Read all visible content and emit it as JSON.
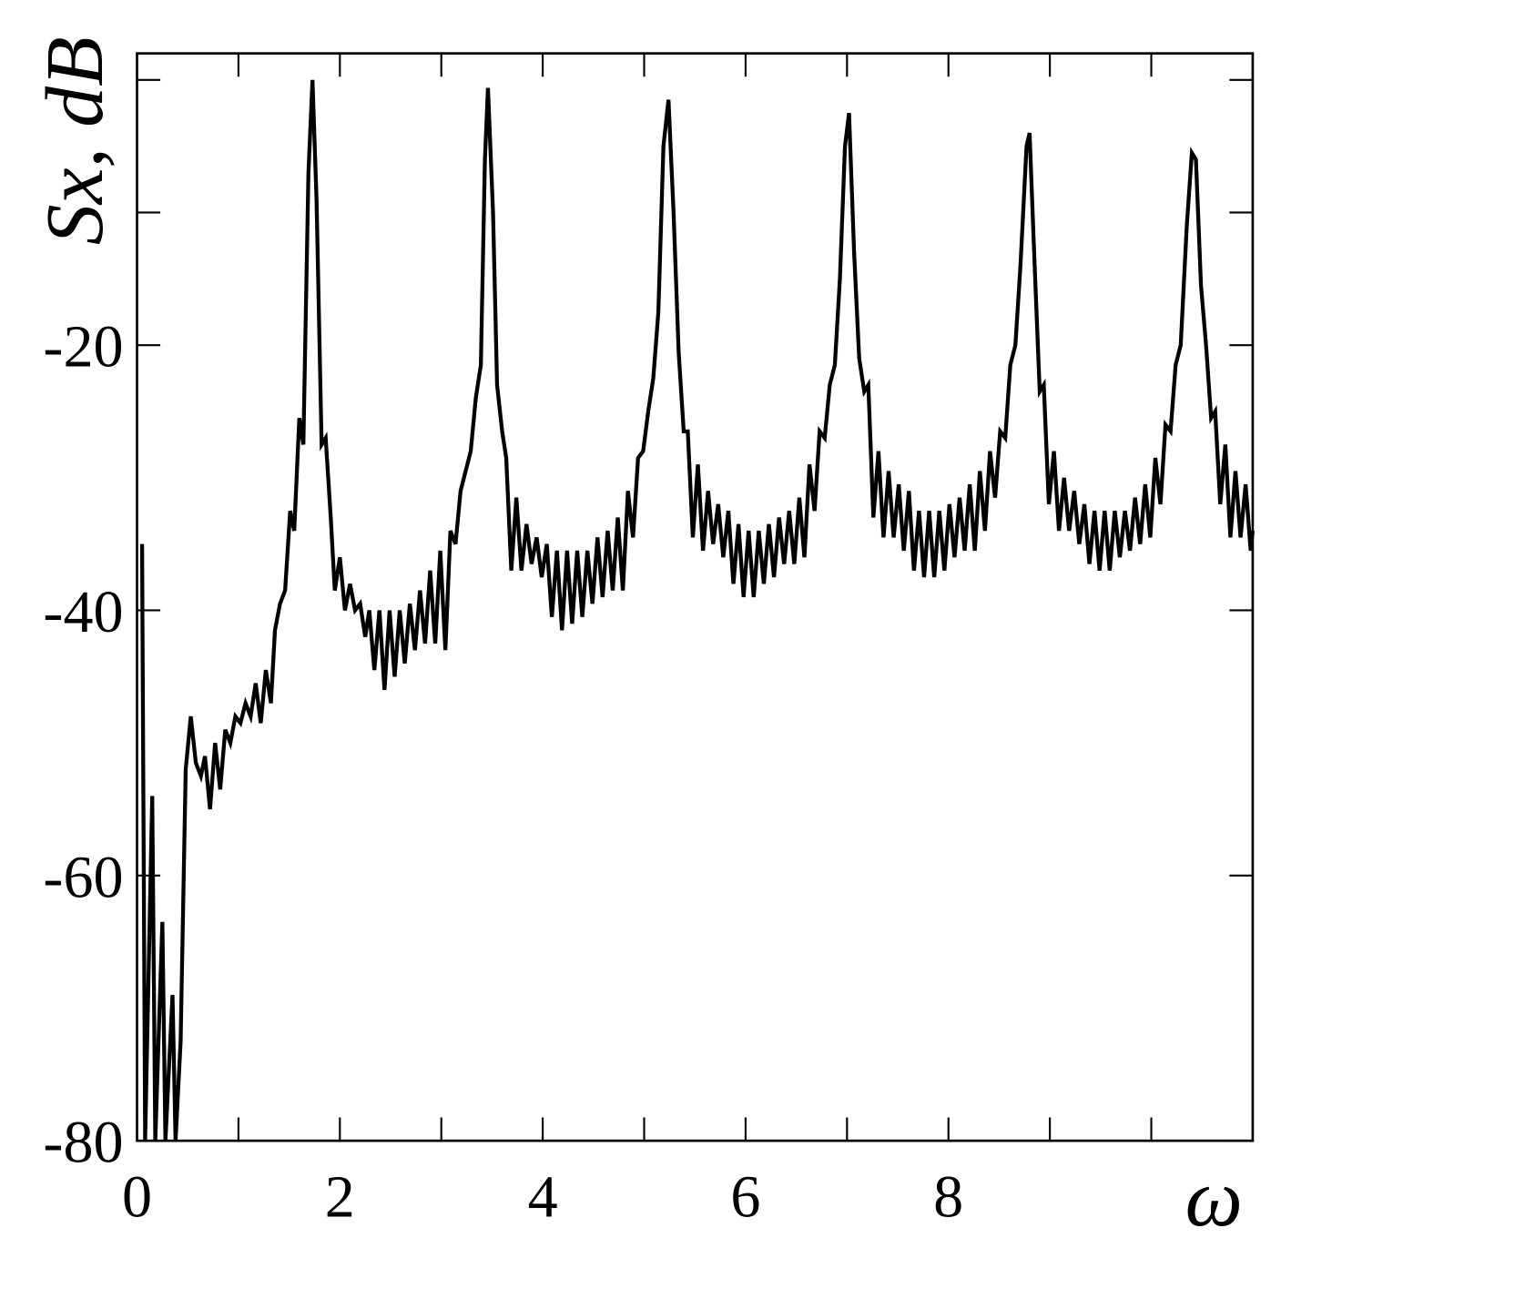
{
  "chart_data": {
    "type": "line",
    "x_label": "ω",
    "y_label": "Sx, dB",
    "color": "#000000",
    "xlim": [
      0,
      11
    ],
    "ylim": [
      -80,
      2
    ],
    "xticks": [
      0,
      2,
      4,
      6,
      8
    ],
    "xminorticks": [
      1,
      3,
      5,
      7,
      9,
      10
    ],
    "yticks": [
      -80,
      -60,
      -40,
      -20
    ],
    "yminorticks": [
      -10,
      0
    ],
    "x": [
      0.05,
      0.08,
      0.15,
      0.18,
      0.25,
      0.28,
      0.35,
      0.38,
      0.43,
      0.48,
      0.53,
      0.58,
      0.63,
      0.67,
      0.72,
      0.77,
      0.82,
      0.87,
      0.92,
      0.97,
      1.02,
      1.07,
      1.12,
      1.17,
      1.22,
      1.27,
      1.32,
      1.36,
      1.41,
      1.46,
      1.51,
      1.55,
      1.6,
      1.64,
      1.69,
      1.73,
      1.77,
      1.82,
      1.86,
      1.91,
      1.95,
      2.0,
      2.05,
      2.1,
      2.15,
      2.2,
      2.25,
      2.29,
      2.34,
      2.39,
      2.44,
      2.49,
      2.54,
      2.59,
      2.64,
      2.69,
      2.74,
      2.79,
      2.84,
      2.89,
      2.94,
      2.99,
      3.04,
      3.09,
      3.14,
      3.19,
      3.24,
      3.29,
      3.34,
      3.39,
      3.43,
      3.46,
      3.51,
      3.55,
      3.6,
      3.64,
      3.69,
      3.74,
      3.79,
      3.84,
      3.89,
      3.94,
      3.99,
      4.04,
      4.09,
      4.14,
      4.19,
      4.24,
      4.29,
      4.34,
      4.39,
      4.44,
      4.49,
      4.54,
      4.59,
      4.64,
      4.69,
      4.74,
      4.79,
      4.84,
      4.89,
      4.94,
      4.99,
      5.04,
      5.09,
      5.14,
      5.19,
      5.24,
      5.29,
      5.34,
      5.39,
      5.43,
      5.48,
      5.53,
      5.58,
      5.63,
      5.68,
      5.73,
      5.78,
      5.83,
      5.88,
      5.93,
      5.98,
      6.03,
      6.08,
      6.13,
      6.18,
      6.23,
      6.28,
      6.33,
      6.38,
      6.43,
      6.48,
      6.53,
      6.58,
      6.63,
      6.68,
      6.73,
      6.78,
      6.83,
      6.88,
      6.93,
      6.98,
      7.02,
      7.07,
      7.12,
      7.17,
      7.21,
      7.26,
      7.31,
      7.36,
      7.41,
      7.46,
      7.51,
      7.56,
      7.61,
      7.66,
      7.71,
      7.76,
      7.81,
      7.86,
      7.91,
      7.96,
      8.01,
      8.06,
      8.11,
      8.16,
      8.21,
      8.26,
      8.31,
      8.36,
      8.41,
      8.46,
      8.51,
      8.56,
      8.61,
      8.66,
      8.71,
      8.77,
      8.8,
      8.85,
      8.9,
      8.94,
      8.99,
      9.04,
      9.09,
      9.14,
      9.19,
      9.24,
      9.29,
      9.34,
      9.39,
      9.44,
      9.49,
      9.54,
      9.59,
      9.64,
      9.69,
      9.74,
      9.79,
      9.84,
      9.89,
      9.94,
      9.99,
      10.04,
      10.09,
      10.14,
      10.19,
      10.24,
      10.29,
      10.35,
      10.4,
      10.44,
      10.49,
      10.54,
      10.59,
      10.63,
      10.68,
      10.73,
      10.78,
      10.83,
      10.88,
      10.93,
      10.98,
      11.0
    ],
    "values": [
      -35,
      -80,
      -54,
      -80,
      -63.5,
      -80,
      -69,
      -80,
      -72.5,
      -52,
      -48,
      -51.5,
      -52.5,
      -51,
      -55,
      -50,
      -53.5,
      -49,
      -50,
      -48,
      -48.5,
      -47,
      -48,
      -45.5,
      -48.5,
      -44.5,
      -47,
      -41.5,
      -39.5,
      -38.5,
      -32.5,
      -34,
      -25.5,
      -27.5,
      -7,
      0,
      -9,
      -27.5,
      -27,
      -33,
      -38.5,
      -36,
      -40,
      -38,
      -40,
      -39.5,
      -42,
      -40,
      -44.5,
      -40,
      -46,
      -40,
      -45,
      -40,
      -44,
      -39.5,
      -43,
      -38.5,
      -42.5,
      -37,
      -42.5,
      -35.5,
      -43,
      -34,
      -35,
      -31,
      -29.5,
      -28,
      -24,
      -21.5,
      -6,
      -0.6,
      -10,
      -23,
      -26.5,
      -28.5,
      -37,
      -31.5,
      -37,
      -33.5,
      -36.5,
      -34.5,
      -37.5,
      -35,
      -40.5,
      -35.5,
      -41.5,
      -35.5,
      -41,
      -35.5,
      -40.5,
      -35.5,
      -39.5,
      -34.5,
      -39,
      -34,
      -38.5,
      -33,
      -38.5,
      -31,
      -34.5,
      -28.5,
      -28,
      -25,
      -22.5,
      -17.5,
      -5,
      -1.5,
      -10,
      -20.5,
      -26.5,
      -26.5,
      -34.5,
      -29,
      -35.5,
      -31,
      -35,
      -32,
      -36,
      -32.5,
      -38,
      -33.5,
      -39,
      -34,
      -39,
      -34,
      -38,
      -33.5,
      -37.5,
      -33,
      -36.5,
      -32.5,
      -36.5,
      -31.5,
      -36,
      -29,
      -32.5,
      -26.5,
      -27,
      -23,
      -21.5,
      -15,
      -5,
      -2.5,
      -13,
      -21,
      -23.5,
      -23,
      -33,
      -28,
      -34.5,
      -29.5,
      -34.5,
      -30.5,
      -35.5,
      -31,
      -37,
      -32.5,
      -37.5,
      -32.5,
      -37.5,
      -32.5,
      -37,
      -32,
      -36,
      -31.5,
      -35.5,
      -30.5,
      -35.5,
      -29.5,
      -34,
      -28,
      -31.5,
      -26.5,
      -27,
      -21.5,
      -20,
      -14,
      -5,
      -4,
      -14,
      -23.5,
      -23,
      -32,
      -28,
      -34,
      -30,
      -34,
      -31,
      -35,
      -32,
      -36.5,
      -32.5,
      -37,
      -32.5,
      -37,
      -32.5,
      -36,
      -32.5,
      -35.5,
      -31.5,
      -35,
      -30.5,
      -34.5,
      -28.5,
      -32,
      -26,
      -26.5,
      -21.5,
      -20,
      -11,
      -5.5,
      -6,
      -15.5,
      -20,
      -25.5,
      -25,
      -32,
      -27.5,
      -34.5,
      -29.5,
      -34.5,
      -30.5,
      -35.5,
      -34
    ]
  }
}
